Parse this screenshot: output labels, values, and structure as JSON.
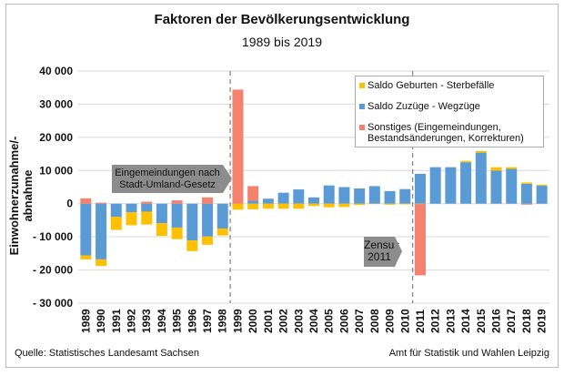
{
  "chart_data": {
    "type": "bar",
    "stacked": true,
    "title": "Faktoren der Bevölkerungsentwicklung",
    "subtitle": "1989 bis 2019",
    "xlabel": "",
    "ylabel": "Einwohnerzunahme/-abnahme",
    "ylim": [
      -30000,
      40000
    ],
    "yticks": [
      40000,
      30000,
      20000,
      10000,
      0,
      -10000,
      -20000,
      -30000
    ],
    "ytick_labels": [
      "40 000",
      "30 000",
      "20 000",
      "10 000",
      "0",
      "- 10 000",
      "- 20 000",
      "- 30 000"
    ],
    "grid": true,
    "legend_position": "top-right",
    "categories": [
      "1989",
      "1990",
      "1991",
      "1992",
      "1993",
      "1994",
      "1995",
      "1996",
      "1997",
      "1998",
      "1999",
      "2000",
      "2001",
      "2002",
      "2003",
      "2004",
      "2005",
      "2006",
      "2007",
      "2008",
      "2009",
      "2010",
      "2011",
      "2012",
      "2013",
      "2014",
      "2015",
      "2016",
      "2017",
      "2018",
      "2019"
    ],
    "series": [
      {
        "name": "Saldo Geburten - Sterbefälle",
        "color": "#ffc000",
        "values": [
          -1200,
          -2000,
          -3900,
          -3900,
          -3900,
          -3800,
          -3500,
          -3200,
          -2500,
          -2100,
          -1800,
          -1700,
          -1500,
          -1500,
          -1500,
          -700,
          -1100,
          -1000,
          -400,
          -100,
          -300,
          -200,
          -100,
          0,
          0,
          400,
          500,
          1000,
          500,
          400,
          300
        ]
      },
      {
        "name": "Saldo Zuzüge - Wegzüge",
        "color": "#5b9bd5",
        "values": [
          -15600,
          -16800,
          -4000,
          -2600,
          -2400,
          -5900,
          -7200,
          -11100,
          -9900,
          -7500,
          0,
          900,
          1500,
          3300,
          4300,
          1900,
          5500,
          5000,
          4600,
          5300,
          3800,
          4400,
          9000,
          11000,
          11000,
          12500,
          15400,
          10000,
          10500,
          6000,
          5400
        ]
      },
      {
        "name": "Sonstiges (Eingemeindungen, Bestandsänderungen, Korrekturen)",
        "color": "#f4826f",
        "values": [
          1600,
          300,
          0,
          0,
          600,
          0,
          1000,
          0,
          1900,
          0,
          34400,
          4400,
          0,
          0,
          0,
          0,
          0,
          0,
          0,
          0,
          0,
          0,
          -21500,
          0,
          0,
          0,
          0,
          0,
          0,
          -300,
          0
        ]
      }
    ],
    "annotations": [
      {
        "text": "Eingemeindungen nach Stadt-Umland-Gesetz",
        "at": "1999"
      },
      {
        "text": "Zensus 2011",
        "at": "2011"
      }
    ]
  },
  "footer": {
    "source": "Quelle: Statistisches Landesamt Sachsen",
    "publisher": "Amt für Statistik und Wahlen Leipzig"
  },
  "legend": {
    "items": [
      "Saldo Geburten - Sterbefälle",
      "Saldo Zuzüge - Wegzüge",
      "Sonstiges (Eingemeindungen, Bestandsänderungen, Korrekturen)"
    ]
  },
  "callouts": {
    "eingemeindung_l1": "Eingemeindungen nach",
    "eingemeindung_l2": "Stadt-Umland-Gesetz",
    "zensus_l1": "Zensus",
    "zensus_l2": "2011"
  }
}
